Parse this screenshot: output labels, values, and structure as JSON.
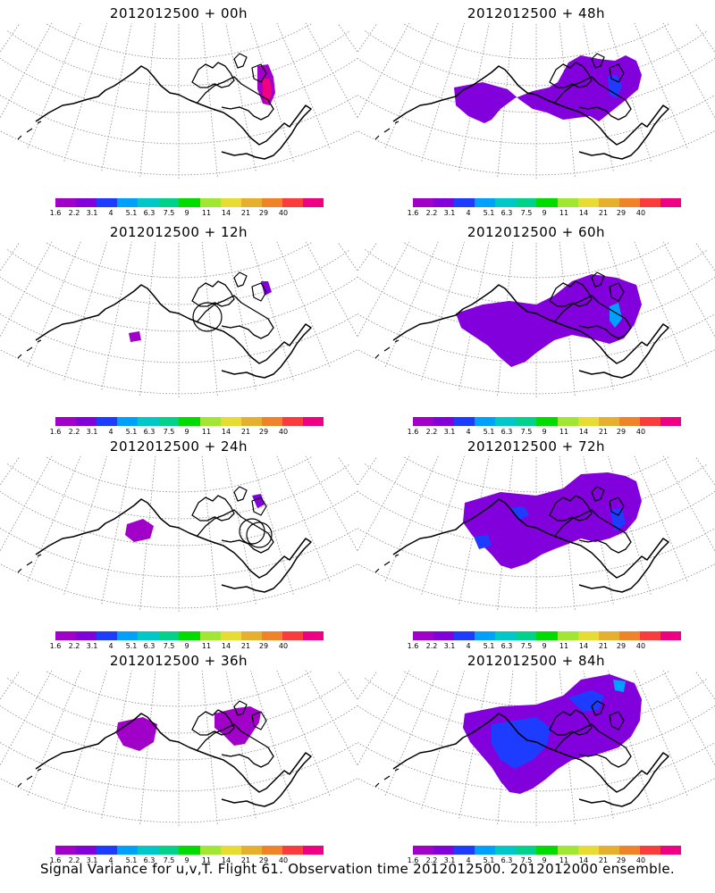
{
  "colorbar": {
    "labels": [
      "1.6",
      "2.2",
      "3.1",
      "4",
      "5.1",
      "6.3",
      "7.5",
      "9",
      "11",
      "14",
      "21",
      "29",
      "40"
    ],
    "colors": [
      "#a000c8",
      "#8200dc",
      "#1e3cff",
      "#00a0ff",
      "#00c8c8",
      "#00d28c",
      "#00dc00",
      "#a0e632",
      "#e6dc32",
      "#e6af2d",
      "#f08228",
      "#fa3c3c",
      "#f00082"
    ]
  },
  "panels": [
    {
      "title": "2012012500  + 00h",
      "lead": "00h"
    },
    {
      "title": "2012012500  + 48h",
      "lead": "48h"
    },
    {
      "title": "2012012500  + 12h",
      "lead": "12h"
    },
    {
      "title": "2012012500  + 60h",
      "lead": "60h"
    },
    {
      "title": "2012012500  + 24h",
      "lead": "24h"
    },
    {
      "title": "2012012500  + 72h",
      "lead": "72h"
    },
    {
      "title": "2012012500  + 36h",
      "lead": "36h"
    },
    {
      "title": "2012012500  + 84h",
      "lead": "84h"
    }
  ],
  "footer": "Signal Variance for u,v,T. Flight 61. Observation time 2012012500. 2012012000 ensemble."
}
